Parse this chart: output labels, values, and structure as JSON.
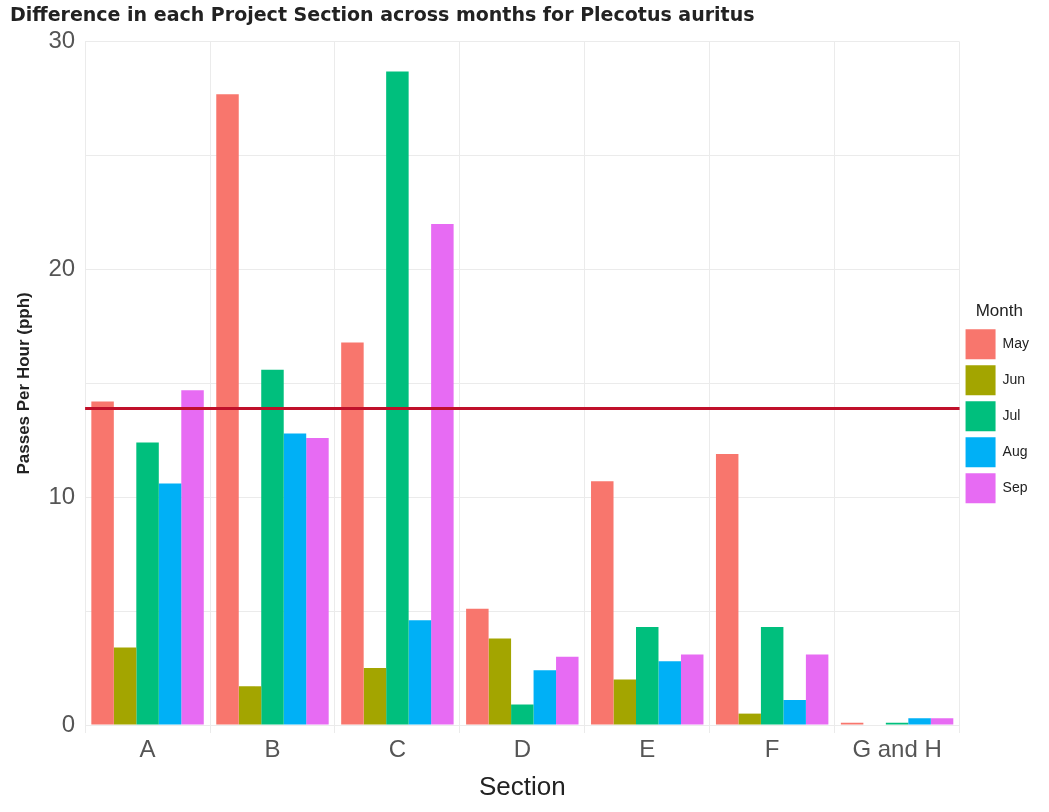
{
  "chart_data": {
    "type": "bar",
    "title": "Difference in each Project Section across months for Plecotus auritus",
    "xlabel": "Section",
    "ylabel": "Passes Per Hour (pph)",
    "legend_title": "Month",
    "categories": [
      "A",
      "B",
      "C",
      "D",
      "E",
      "F",
      "G and H"
    ],
    "series": [
      {
        "name": "May",
        "color": "#f8766d",
        "values": [
          14.2,
          27.7,
          16.8,
          5.1,
          10.7,
          11.9,
          0.1
        ]
      },
      {
        "name": "Jun",
        "color": "#a3a500",
        "values": [
          3.4,
          1.7,
          2.5,
          3.8,
          2.0,
          0.5,
          0
        ]
      },
      {
        "name": "Jul",
        "color": "#00bf7d",
        "values": [
          12.4,
          15.6,
          28.7,
          0.9,
          4.3,
          4.3,
          0.1
        ]
      },
      {
        "name": "Aug",
        "color": "#00b0f6",
        "values": [
          10.6,
          12.8,
          4.6,
          2.4,
          2.8,
          1.1,
          0.3
        ]
      },
      {
        "name": "Sep",
        "color": "#e76bf3",
        "values": [
          14.7,
          12.6,
          22.0,
          3.0,
          3.1,
          3.1,
          0.3
        ]
      }
    ],
    "ylim": [
      0,
      30
    ],
    "yticks": [
      0,
      {
        "value": 5,
        "label": null
      },
      10,
      {
        "value": 15,
        "label": null
      },
      20,
      {
        "value": 25,
        "label": null
      },
      30
    ],
    "grid": true,
    "legend": "right",
    "ref_lines": [
      {
        "axis": "y",
        "value": 13.9,
        "color": "#c0102a"
      }
    ]
  }
}
